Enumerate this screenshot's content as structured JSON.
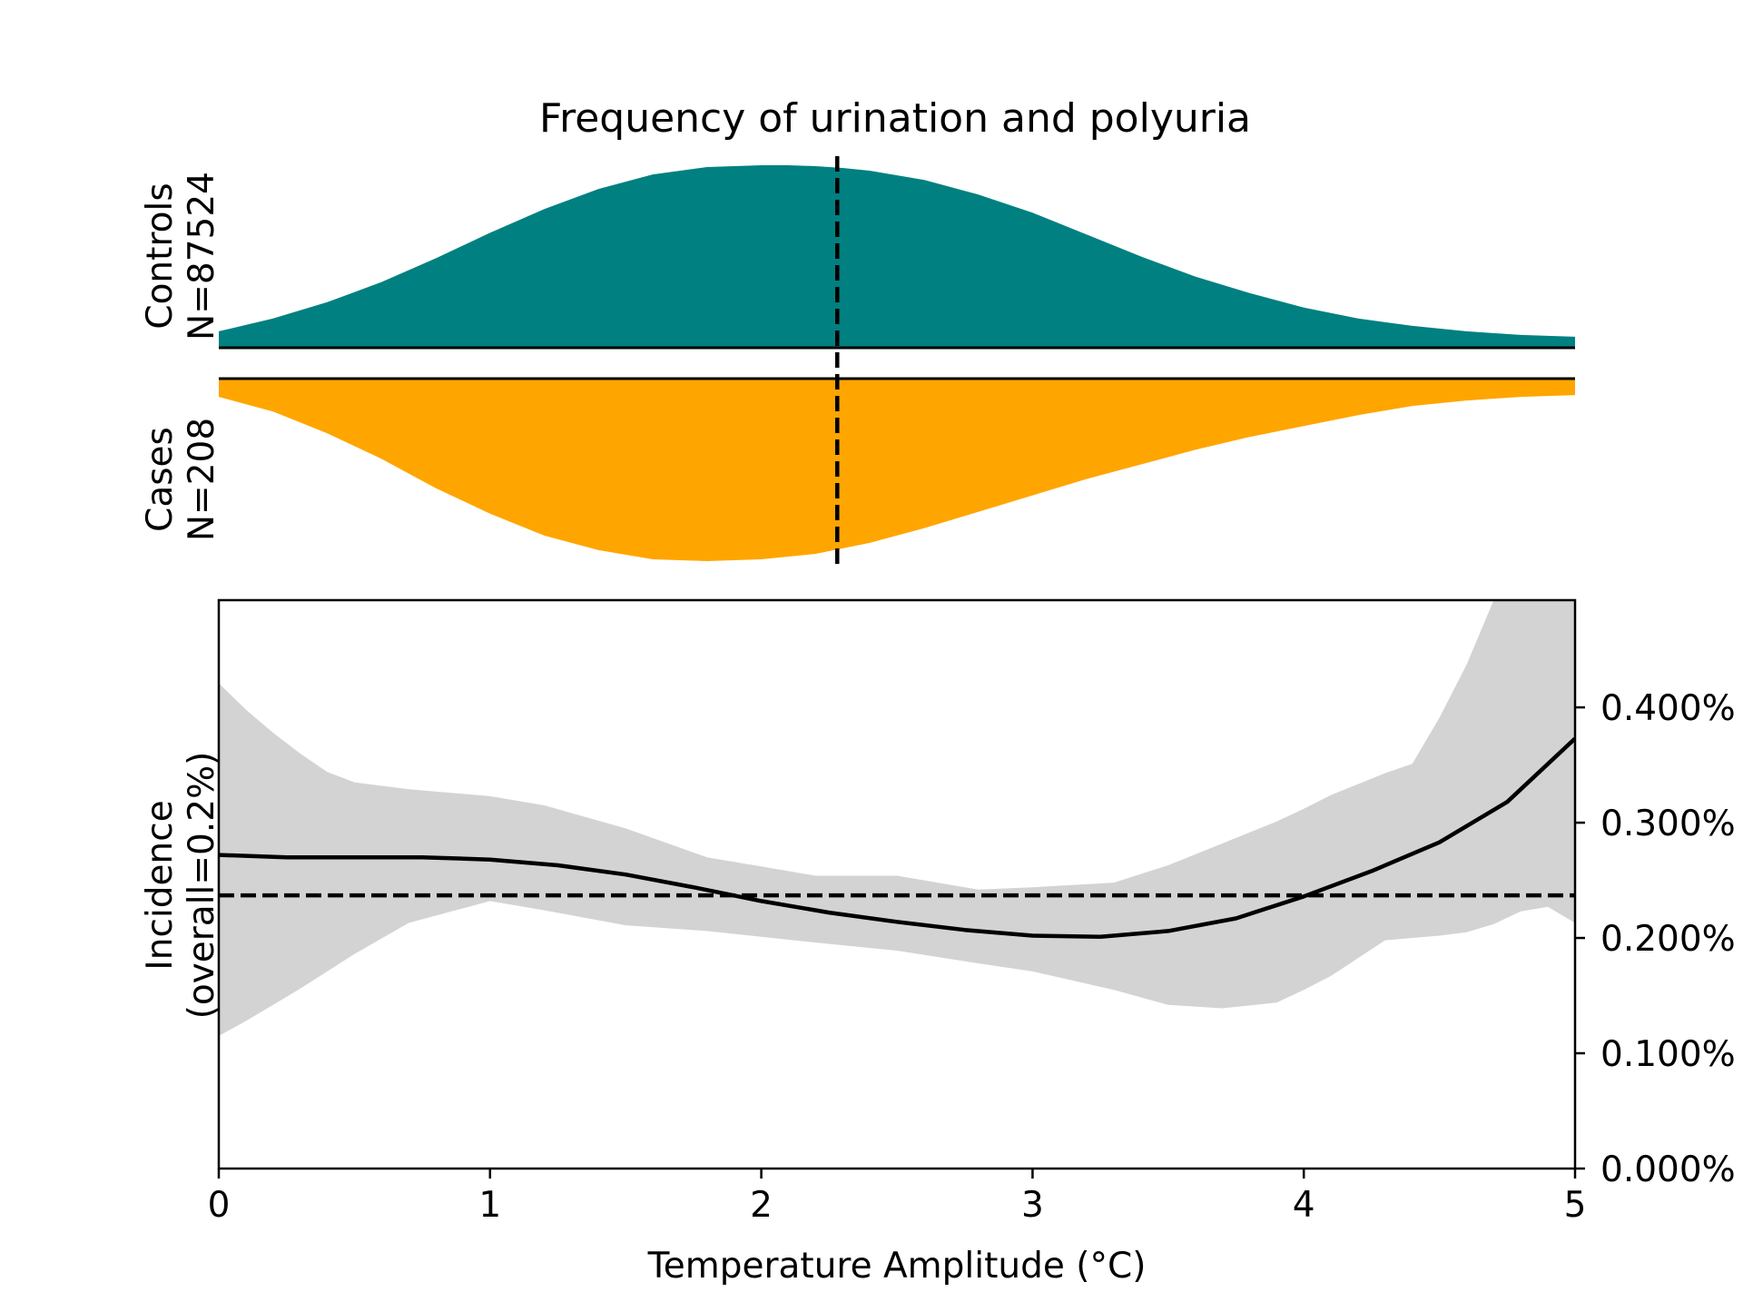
{
  "colors": {
    "controls": "#008080",
    "cases": "#FFA500",
    "band": "#D3D3D3",
    "line": "#000000"
  },
  "chart_data": {
    "type": "area",
    "title": "Frequency of urination and polyuria",
    "xlabel": "Temperature Amplitude (°C)",
    "ylabel": "Incidence\n(overall=0.2%)",
    "xlim": [
      0,
      5
    ],
    "ylim": [
      0,
      0.00493
    ],
    "x_ticks": [
      0,
      1,
      2,
      3,
      4,
      5
    ],
    "x_tick_labels": [
      "0",
      "1",
      "2",
      "3",
      "4",
      "5"
    ],
    "y_ticks": [
      0,
      0.001,
      0.002,
      0.003,
      0.004
    ],
    "y_tick_labels": [
      "0.000%",
      "0.100%",
      "0.200%",
      "0.300%",
      "0.400%"
    ],
    "y_axis_side": "right",
    "grid": false,
    "controls": {
      "label": "Controls\nN=87524",
      "x": [
        0,
        0.2,
        0.4,
        0.6,
        0.8,
        1.0,
        1.2,
        1.4,
        1.6,
        1.8,
        2.0,
        2.1,
        2.2,
        2.3,
        2.4,
        2.6,
        2.8,
        3.0,
        3.2,
        3.4,
        3.6,
        3.8,
        4.0,
        4.2,
        4.4,
        4.6,
        4.8,
        5.0
      ],
      "density": [
        0.09,
        0.16,
        0.25,
        0.36,
        0.49,
        0.63,
        0.76,
        0.87,
        0.95,
        0.99,
        1.0,
        1.0,
        0.995,
        0.985,
        0.97,
        0.92,
        0.84,
        0.74,
        0.62,
        0.5,
        0.39,
        0.3,
        0.22,
        0.16,
        0.12,
        0.09,
        0.07,
        0.06
      ],
      "median": 2.28
    },
    "cases": {
      "label": "Cases\nN=208",
      "x": [
        0,
        0.2,
        0.4,
        0.6,
        0.8,
        1.0,
        1.2,
        1.4,
        1.6,
        1.8,
        2.0,
        2.2,
        2.4,
        2.6,
        2.8,
        3.0,
        3.2,
        3.4,
        3.6,
        3.8,
        4.0,
        4.2,
        4.4,
        4.6,
        4.8,
        5.0
      ],
      "density": [
        0.1,
        0.18,
        0.3,
        0.44,
        0.6,
        0.74,
        0.86,
        0.94,
        0.99,
        1.0,
        0.99,
        0.96,
        0.9,
        0.82,
        0.73,
        0.64,
        0.55,
        0.47,
        0.39,
        0.32,
        0.26,
        0.2,
        0.15,
        0.12,
        0.1,
        0.09
      ],
      "median": 2.28
    },
    "incidence": {
      "x": [
        0,
        0.25,
        0.5,
        0.75,
        1.0,
        1.25,
        1.5,
        1.75,
        2.0,
        2.25,
        2.5,
        2.75,
        3.0,
        3.25,
        3.5,
        3.75,
        4.0,
        4.25,
        4.5,
        4.75,
        5.0
      ],
      "y": [
        0.00272,
        0.0027,
        0.0027,
        0.0027,
        0.00268,
        0.00263,
        0.00255,
        0.00244,
        0.00232,
        0.00222,
        0.00214,
        0.00207,
        0.00202,
        0.00201,
        0.00206,
        0.00217,
        0.00236,
        0.00258,
        0.00283,
        0.00318,
        0.00373
      ],
      "ci_x": [
        0,
        0.1,
        0.2,
        0.3,
        0.4,
        0.5,
        0.7,
        1.0,
        1.2,
        1.5,
        1.8,
        2.0,
        2.2,
        2.5,
        2.8,
        3.0,
        3.3,
        3.5,
        3.7,
        3.9,
        4.0,
        4.1,
        4.3,
        4.4,
        4.5,
        4.6,
        4.7,
        4.8,
        4.9,
        5.0
      ],
      "ci_lower": [
        0.00115,
        0.00128,
        0.00142,
        0.00156,
        0.00171,
        0.00186,
        0.00213,
        0.00232,
        0.00224,
        0.00211,
        0.00206,
        0.00201,
        0.00196,
        0.00189,
        0.00178,
        0.00171,
        0.00155,
        0.00142,
        0.00139,
        0.00144,
        0.00155,
        0.00167,
        0.00198,
        0.002,
        0.00202,
        0.00205,
        0.00212,
        0.00223,
        0.00227,
        0.00213
      ],
      "ci_upper": [
        0.00421,
        0.00398,
        0.00378,
        0.0036,
        0.00344,
        0.00335,
        0.00329,
        0.00323,
        0.00315,
        0.00295,
        0.0027,
        0.00262,
        0.00254,
        0.00254,
        0.00242,
        0.00244,
        0.00248,
        0.00263,
        0.00282,
        0.00301,
        0.00312,
        0.00324,
        0.00343,
        0.00351,
        0.00391,
        0.00437,
        0.00493,
        0.00493,
        0.00493,
        0.00493
      ],
      "overall": 0.00237
    }
  }
}
